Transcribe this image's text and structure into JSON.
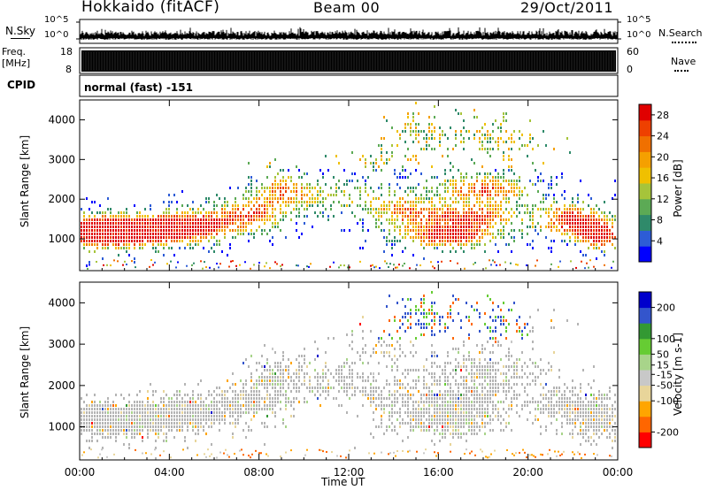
{
  "header": {
    "station": "Hokkaido (fitACF)",
    "beam": "Beam 00",
    "date": "29/Oct/2011"
  },
  "left_labels": {
    "nsky": "N.Sky",
    "freq_line1": "Freq.",
    "freq_line2": "[MHz]",
    "cpid": "CPID"
  },
  "right_labels": {
    "nsearch": "N.Search",
    "nave": "Nave"
  },
  "cpid_text": "normal (fast) -151",
  "colors": {
    "power": [
      "#0000ff",
      "#2d5cd6",
      "#2f8a6a",
      "#5caa55",
      "#a6c43a",
      "#f0c000",
      "#f5a000",
      "#f07000",
      "#ee4000",
      "#e00000"
    ],
    "velocity": [
      "#ff0000",
      "#ff6600",
      "#ffa500",
      "#e8d59a",
      "#c8c8c8",
      "#a8d48a",
      "#66cc33",
      "#339933",
      "#3355cc",
      "#0000cc"
    ],
    "ground_scatter": "#b4b4b4"
  },
  "chart_data": [
    {
      "type": "line",
      "name": "noise-panel",
      "left_axis": {
        "label": "N.Sky",
        "ticks": [
          "10^5",
          "10^0"
        ]
      },
      "right_axis": {
        "label": "N.Search",
        "ticks": [
          "10^5",
          "10^0"
        ]
      }
    },
    {
      "type": "line",
      "name": "freq-panel",
      "left_axis": {
        "label": "Freq. [MHz]",
        "ticks": [
          "18",
          "8"
        ]
      },
      "right_axis": {
        "label": "Nave",
        "ticks": [
          "60",
          "0"
        ]
      }
    },
    {
      "type": "heatmap",
      "name": "power",
      "ylabel": "Slant Range [km]",
      "yticks": [
        "1000",
        "2000",
        "3000",
        "4000"
      ],
      "ylim": [
        200,
        4500
      ],
      "xlim": [
        0,
        24
      ],
      "colorbar": {
        "label": "Power [dB]",
        "ticks": [
          "4",
          "8",
          "12",
          "16",
          "20",
          "24",
          "28"
        ],
        "range": [
          0,
          30
        ]
      }
    },
    {
      "type": "heatmap",
      "name": "velocity",
      "ylabel": "Slant Range [km]",
      "yticks": [
        "1000",
        "2000",
        "3000",
        "4000"
      ],
      "ylim": [
        200,
        4500
      ],
      "xlim": [
        0,
        24
      ],
      "xlabel": "Time UT",
      "xticks": [
        "00:00",
        "04:00",
        "08:00",
        "12:00",
        "16:00",
        "20:00",
        "00:00"
      ],
      "colorbar": {
        "label": "Velocity [m s-1]",
        "ticks": [
          "200",
          "100",
          "50",
          "15",
          "-15",
          "-50",
          "-100",
          "-200"
        ],
        "range": [
          -250,
          250
        ]
      }
    }
  ]
}
